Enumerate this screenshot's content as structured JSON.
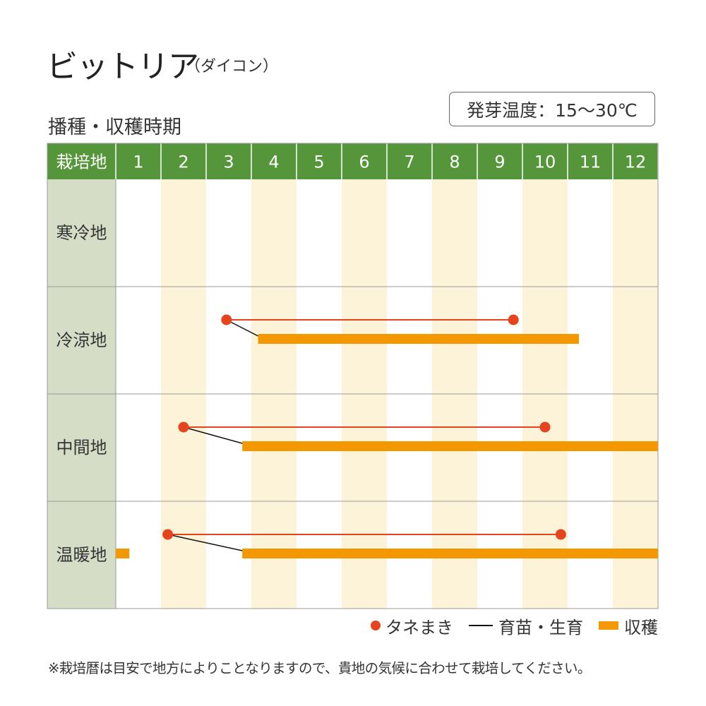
{
  "header": {
    "title": "ビットリア",
    "subtitle": "（ダイコン）",
    "section_heading": "播種・収穫時期",
    "germination": "発芽温度：15～30℃"
  },
  "legend": {
    "sowing": "タネまき",
    "nursery": "育苗・生育",
    "harvest": "収穫"
  },
  "footnote": "※栽培暦は目安で地方によりことなりますので、貴地の気候に合わせて栽培してください。",
  "colors": {
    "header_green": "#55963a",
    "region_bg": "#d6ddc7",
    "stripe": "#fcf3d8",
    "sowing": "#e8431f",
    "harvest": "#f39800",
    "nursery_line": "#111111",
    "grid": "#999999"
  },
  "chart_data": {
    "type": "gantt",
    "header_label": "栽培地",
    "months": [
      "1",
      "2",
      "3",
      "4",
      "5",
      "6",
      "7",
      "8",
      "9",
      "10",
      "11",
      "12"
    ],
    "rows": [
      {
        "region": "寒冷地"
      },
      {
        "region": "冷涼地",
        "sowing": {
          "start": 3.45,
          "end": 9.8
        },
        "connector": {
          "from": 3.45,
          "to": 4.15
        },
        "harvest": [
          {
            "start": 4.15,
            "end": 11.25
          }
        ]
      },
      {
        "region": "中間地",
        "sowing": {
          "start": 2.5,
          "end": 10.5
        },
        "connector": {
          "from": 2.5,
          "to": 3.8
        },
        "harvest": [
          {
            "start": 3.8,
            "end": 13.0
          }
        ]
      },
      {
        "region": "温暖地",
        "sowing": {
          "start": 2.15,
          "end": 10.85
        },
        "connector": {
          "from": 2.15,
          "to": 3.8
        },
        "harvest": [
          {
            "start": 1.0,
            "end": 1.3
          },
          {
            "start": 3.8,
            "end": 13.0
          }
        ]
      }
    ]
  }
}
